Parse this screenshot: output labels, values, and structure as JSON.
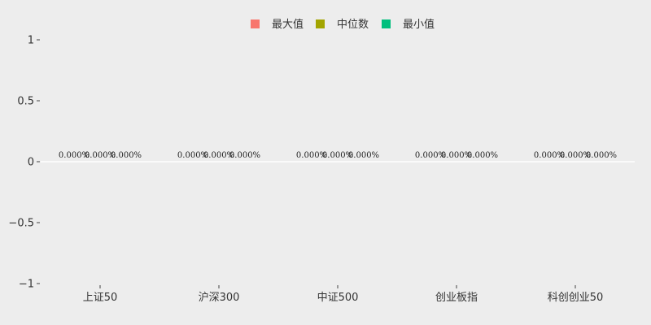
{
  "chart_data": {
    "type": "bar",
    "categories": [
      "上证50",
      "沪深300",
      "中证500",
      "创业板指",
      "科创创业50"
    ],
    "series": [
      {
        "name": "最大值",
        "color": "#f8766d",
        "values": [
          0,
          0,
          0,
          0,
          0
        ],
        "labels": [
          "0.000%",
          "0.000%",
          "0.000%",
          "0.000%",
          "0.000%"
        ]
      },
      {
        "name": "中位数",
        "color": "#a3a500",
        "values": [
          0,
          0,
          0,
          0,
          0
        ],
        "labels": [
          "0.000%",
          "0.000%",
          "0.000%",
          "0.000%",
          "0.000%"
        ]
      },
      {
        "name": "最小值",
        "color": "#00bf7d",
        "values": [
          0,
          0,
          0,
          0,
          0
        ],
        "labels": [
          "0.000%",
          "0.000%",
          "0.000%",
          "0.000%",
          "0.000%"
        ]
      }
    ],
    "ylim": [
      -1,
      1
    ],
    "yticks": [
      {
        "value": 1,
        "label": "1"
      },
      {
        "value": 0.5,
        "label": "0.5"
      },
      {
        "value": 0,
        "label": "0"
      },
      {
        "value": -0.5,
        "label": "−0.5"
      },
      {
        "value": -1,
        "label": "−1"
      }
    ],
    "legend_position": "top-center",
    "grid": false,
    "zero_line_color": "#ffffff",
    "background_color": "#ededed"
  }
}
